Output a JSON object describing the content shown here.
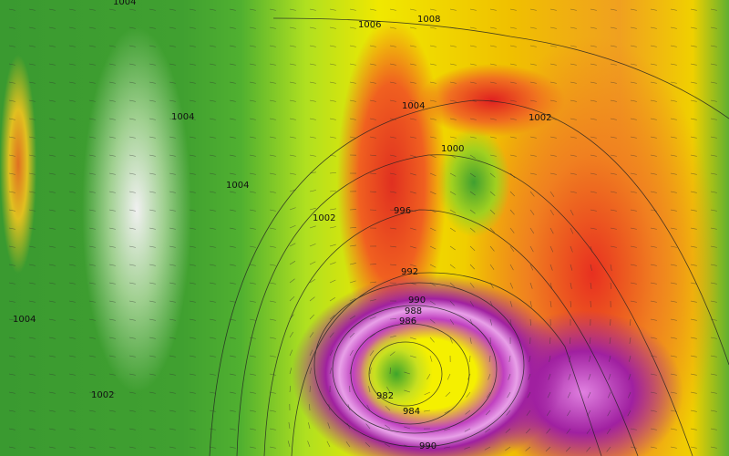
{
  "map": {
    "type": "surface pressure (hPa) isobars over wind-speed shading with wind arrows",
    "colors": {
      "calm": "#3a9a30",
      "moderate": "#f0e800",
      "strong": "#f08020",
      "very_strong": "#e03020",
      "extreme": "#a020a0",
      "peak": "#e8a0e8"
    },
    "isobar_labels": [
      "1004",
      "1006",
      "1008",
      "1004",
      "1004",
      "1004",
      "1002",
      "1000",
      "996",
      "992",
      "990",
      "988",
      "986",
      "982",
      "984",
      "990",
      "1004",
      "1002",
      "1002"
    ]
  }
}
